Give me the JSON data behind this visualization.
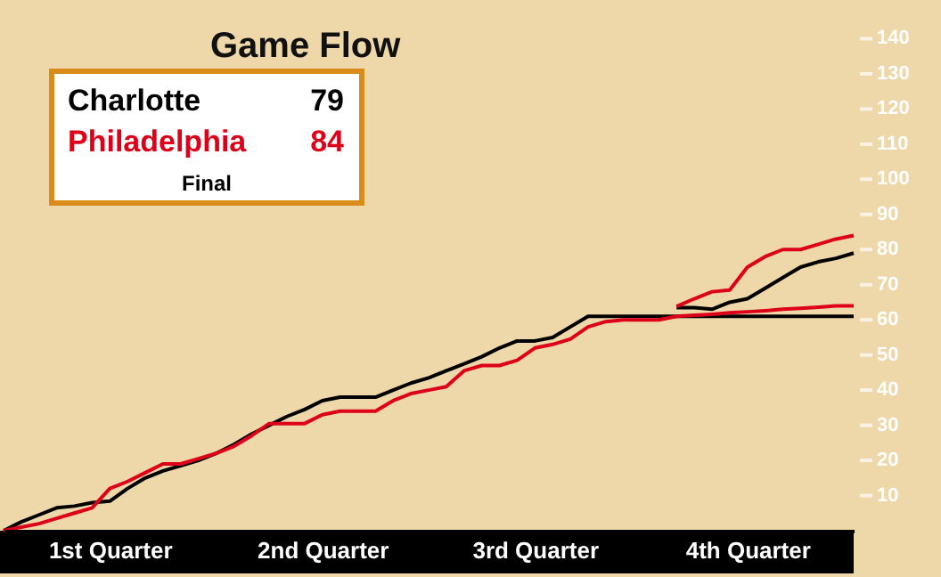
{
  "chart_data": {
    "type": "line",
    "title": "Game Flow",
    "categories": [
      null,
      null,
      null,
      null,
      null,
      null,
      "1st Quarter",
      null,
      null,
      null,
      null,
      null,
      null,
      null,
      null,
      null,
      null,
      null,
      "2nd Quarter",
      null,
      null,
      null,
      null,
      null,
      null,
      null,
      null,
      null,
      null,
      null,
      "3rd Quarter",
      null,
      null,
      null,
      null,
      null,
      null,
      null,
      null,
      null,
      null,
      null,
      "4th Quarter",
      null,
      null,
      null,
      null,
      null,
      null
    ],
    "ylim": [
      0,
      150
    ],
    "yticks": [
      10,
      20,
      30,
      40,
      50,
      60,
      70,
      80,
      90,
      100,
      110,
      120,
      130,
      140
    ],
    "series": [
      {
        "name": "Charlotte",
        "color": "#000000",
        "values": [
          0,
          2.5,
          4.5,
          6.5,
          7,
          8,
          8.4,
          12,
          15,
          17,
          18.5,
          20,
          22,
          24.5,
          27.5,
          30,
          32.5,
          34.5,
          37,
          38,
          38,
          38,
          40,
          42,
          43.5,
          45.5,
          47.5,
          49.5,
          52,
          54,
          54,
          55,
          58,
          61,
          61,
          61,
          61,
          61,
          61,
          61,
          61,
          61,
          61,
          61,
          61,
          61,
          61,
          61,
          61
        ]
      },
      {
        "name": "Philadelphia",
        "color": "#dd0018",
        "values": [
          0,
          1,
          2,
          3.5,
          5,
          6.5,
          12,
          14,
          16.5,
          19,
          19,
          20.5,
          22,
          24,
          27,
          30.5,
          30.5,
          30.5,
          33,
          34,
          34,
          34,
          37,
          39,
          40,
          41,
          45.5,
          47,
          47,
          48.5,
          52,
          53,
          54.5,
          58,
          59.5,
          60,
          60,
          60,
          61,
          61.3,
          61.6,
          62,
          62.3,
          62.6,
          63,
          63.3,
          63.6,
          64,
          64
        ]
      },
      {
        "color": "#000000",
        "values": [
          null,
          null,
          null,
          null,
          null,
          null,
          null,
          null,
          null,
          null,
          null,
          null,
          null,
          null,
          null,
          null,
          null,
          null,
          null,
          null,
          null,
          null,
          null,
          null,
          null,
          null,
          null,
          null,
          null,
          null,
          null,
          null,
          null,
          null,
          null,
          null,
          null,
          null,
          63.5,
          63.5,
          63,
          65,
          66,
          69,
          72,
          75,
          76.5,
          77.5,
          79
        ]
      },
      {
        "color": "#dd0018",
        "values": [
          null,
          null,
          null,
          null,
          null,
          null,
          null,
          null,
          null,
          null,
          null,
          null,
          null,
          null,
          null,
          null,
          null,
          null,
          null,
          null,
          null,
          null,
          null,
          null,
          null,
          null,
          null,
          null,
          null,
          null,
          null,
          null,
          null,
          null,
          null,
          null,
          null,
          null,
          63.8,
          66,
          68,
          68.5,
          75,
          78,
          80,
          80,
          81.5,
          83,
          84
        ]
      }
    ],
    "legend": "top left",
    "annotations": [
      "79",
      "84",
      "Final"
    ]
  }
}
